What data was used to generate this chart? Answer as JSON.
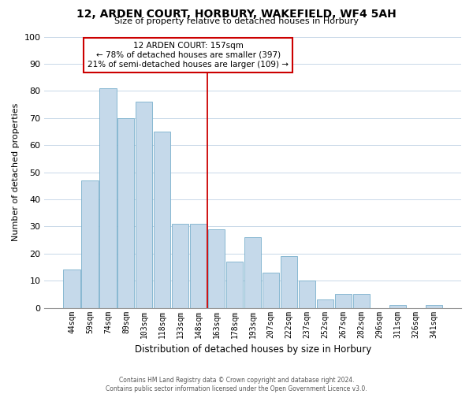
{
  "title": "12, ARDEN COURT, HORBURY, WAKEFIELD, WF4 5AH",
  "subtitle": "Size of property relative to detached houses in Horbury",
  "xlabel": "Distribution of detached houses by size in Horbury",
  "ylabel": "Number of detached properties",
  "categories": [
    "44sqm",
    "59sqm",
    "74sqm",
    "89sqm",
    "103sqm",
    "118sqm",
    "133sqm",
    "148sqm",
    "163sqm",
    "178sqm",
    "193sqm",
    "207sqm",
    "222sqm",
    "237sqm",
    "252sqm",
    "267sqm",
    "282sqm",
    "296sqm",
    "311sqm",
    "326sqm",
    "341sqm"
  ],
  "values": [
    14,
    47,
    81,
    70,
    76,
    65,
    31,
    31,
    29,
    17,
    26,
    13,
    19,
    10,
    3,
    5,
    5,
    0,
    1,
    0,
    1
  ],
  "bar_color": "#c5d9ea",
  "bar_edge_color": "#7ab0cc",
  "vline_index": 8,
  "vline_color": "#cc0000",
  "annotation_text": "12 ARDEN COURT: 157sqm\n← 78% of detached houses are smaller (397)\n21% of semi-detached houses are larger (109) →",
  "ylim": [
    0,
    100
  ],
  "yticks": [
    0,
    10,
    20,
    30,
    40,
    50,
    60,
    70,
    80,
    90,
    100
  ],
  "background_color": "#ffffff",
  "grid_color": "#c8d8e8",
  "footer_line1": "Contains HM Land Registry data © Crown copyright and database right 2024.",
  "footer_line2": "Contains public sector information licensed under the Open Government Licence v3.0."
}
